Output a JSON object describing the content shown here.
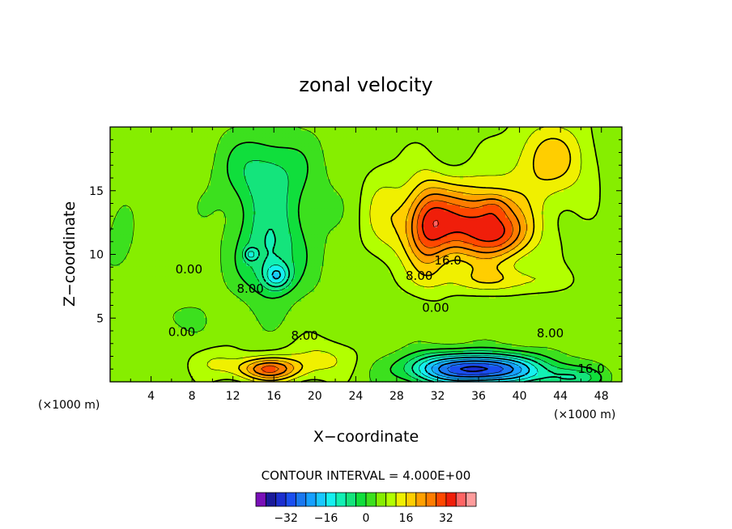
{
  "chart_data": {
    "type": "heatmap",
    "title": "zonal velocity",
    "xlabel": "X−coordinate",
    "ylabel": "Z−coordinate",
    "xunit_left": "(×1000 m)",
    "xunit_right": "(×1000 m)",
    "xlim": [
      0,
      50
    ],
    "ylim": [
      0,
      20
    ],
    "xticks": [
      4,
      8,
      12,
      16,
      20,
      24,
      28,
      32,
      36,
      40,
      44,
      48
    ],
    "xtick_labels": [
      "4",
      "8",
      "12",
      "16",
      "20",
      "24",
      "28",
      "32",
      "36",
      "40",
      "44",
      "48"
    ],
    "yticks": [
      5,
      10,
      15
    ],
    "ytick_labels": [
      "5",
      "10",
      "15"
    ],
    "contour_interval_text": "CONTOUR INTERVAL = 4.000E+00",
    "contour_labels": [
      {
        "text": "0.00",
        "x": 7.7,
        "z": 8.5
      },
      {
        "text": "8.00",
        "x": 13.7,
        "z": 7.0
      },
      {
        "text": "16.0",
        "x": 33.0,
        "z": 9.2
      },
      {
        "text": "8.00",
        "x": 30.2,
        "z": 8.0
      },
      {
        "text": "0.00",
        "x": 31.8,
        "z": 5.5
      },
      {
        "text": "0.00",
        "x": 7.0,
        "z": 3.6
      },
      {
        "text": "8.00",
        "x": 19.0,
        "z": 3.3
      },
      {
        "text": "8.00",
        "x": 43.0,
        "z": 3.5
      },
      {
        "text": "16.0",
        "x": 47.0,
        "z": 0.7
      }
    ],
    "colorbar": {
      "ticks": [
        -32,
        -16,
        0,
        16,
        32
      ],
      "tick_labels": [
        "−32",
        "−16",
        "0",
        "16",
        "32"
      ],
      "levels": [
        -40,
        -36,
        -32,
        -28,
        -24,
        -20,
        -16,
        -12,
        -8,
        -4,
        0,
        4,
        8,
        12,
        16,
        20,
        24,
        28,
        32,
        36,
        40
      ],
      "colors": [
        "#7a10b8",
        "#1a1a9a",
        "#1c2ecf",
        "#1b4ff0",
        "#1a78f0",
        "#16a0ff",
        "#19c8ff",
        "#16f0f0",
        "#12f0b4",
        "#14e47c",
        "#10de3c",
        "#3ce01e",
        "#86ee00",
        "#b2ff00",
        "#f0f000",
        "#ffce00",
        "#ffa000",
        "#ff7c00",
        "#ff4800",
        "#f01e0a",
        "#ff6464",
        "#ff9c9c"
      ]
    },
    "anomalies": [
      {
        "x": 36.0,
        "z": 1.0,
        "amp": -40,
        "sx": 6,
        "sz": 1.2
      },
      {
        "x": 45.0,
        "z": 0.3,
        "amp": -12,
        "sx": 3,
        "sz": 0.8
      },
      {
        "x": 31.0,
        "z": 1.2,
        "amp": -4,
        "sx": 2.5,
        "sz": 1.5
      },
      {
        "x": 15.5,
        "z": 1.0,
        "amp": 22,
        "sx": 3,
        "sz": 0.9
      },
      {
        "x": 20.5,
        "z": 1.8,
        "amp": 7,
        "sx": 3.5,
        "sz": 1.5
      },
      {
        "x": 10.5,
        "z": 1.5,
        "amp": 6,
        "sx": 2.5,
        "sz": 1.2
      },
      {
        "x": 34.5,
        "z": 12.5,
        "amp": 24,
        "sx": 6,
        "sz": 3
      },
      {
        "x": 38.0,
        "z": 11.5,
        "amp": 12,
        "sx": 3,
        "sz": 1.8
      },
      {
        "x": 37.5,
        "z": 13.8,
        "amp": 6,
        "sx": 1.5,
        "sz": 1.0
      },
      {
        "x": 43.0,
        "z": 17.5,
        "amp": 12,
        "sx": 4,
        "sz": 3
      },
      {
        "x": 31.0,
        "z": 12.0,
        "amp": 12,
        "sx": 2,
        "sz": 4
      },
      {
        "x": 38.0,
        "z": 8.0,
        "amp": 8,
        "sx": 6,
        "sz": 1.0
      },
      {
        "x": 15.0,
        "z": 16.5,
        "amp": -10,
        "sx": 4,
        "sz": 3
      },
      {
        "x": 15.5,
        "z": 10.0,
        "amp": -12,
        "sx": 3,
        "sz": 3.5
      },
      {
        "x": 16.3,
        "z": 8.3,
        "amp": -14,
        "sx": 1.3,
        "sz": 1.0
      },
      {
        "x": 13.7,
        "z": 10.0,
        "amp": -10,
        "sx": 0.6,
        "sz": 0.5
      },
      {
        "x": 17.0,
        "z": 13.0,
        "amp": -4,
        "sx": 5,
        "sz": 5
      },
      {
        "x": 1.0,
        "z": 10.5,
        "amp": -4,
        "sx": 1.5,
        "sz": 2.5
      },
      {
        "x": 6.5,
        "z": 5.0,
        "amp": -3,
        "sx": 2.5,
        "sz": 1.2
      },
      {
        "x": 26.5,
        "z": 14.0,
        "amp": 4,
        "sx": 2,
        "sz": 5
      }
    ]
  },
  "colorbar_tick_values_placeholder": ""
}
